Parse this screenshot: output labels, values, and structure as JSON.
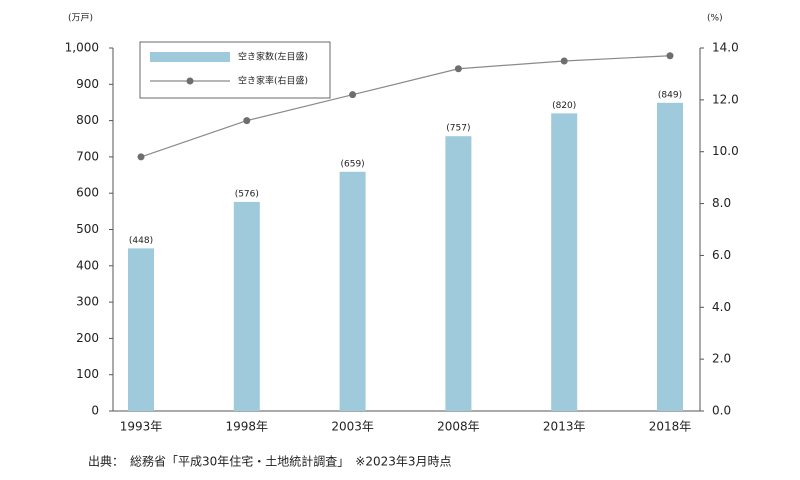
{
  "chart_data": {
    "type": "bar-line",
    "y_unit": "(万戸)",
    "y2_unit": "(%)",
    "categories": [
      "1993年",
      "1998年",
      "2003年",
      "2008年",
      "2013年",
      "2018年"
    ],
    "series": [
      {
        "name": "空き家数(左目盛)",
        "type": "bar",
        "color": "#9ecadb",
        "values": [
          448,
          576,
          659,
          757,
          820,
          849
        ],
        "value_labels": [
          "(448)",
          "(576)",
          "(659)",
          "(757)",
          "(820)",
          "(849)"
        ]
      },
      {
        "name": "空き家率(右目盛)",
        "type": "line",
        "axis": "y2",
        "color": "#8a8a8a",
        "marker_color": "#6e6e6e",
        "values": [
          9.8,
          11.2,
          12.2,
          13.2,
          13.5,
          13.7
        ]
      }
    ],
    "ylim": [
      0,
      1000
    ],
    "yticks": [
      0,
      100,
      200,
      300,
      400,
      500,
      600,
      700,
      800,
      900,
      {
        "value": 1000,
        "label": "1,000"
      }
    ],
    "y2lim": [
      0,
      14
    ],
    "y2ticks": [
      {
        "value": 0,
        "label": "0.0"
      },
      {
        "value": 2,
        "label": "2.0"
      },
      {
        "value": 4,
        "label": "4.0"
      },
      {
        "value": 6,
        "label": "6.0"
      },
      {
        "value": 8,
        "label": "8.0"
      },
      {
        "value": 10,
        "label": "10.0"
      },
      {
        "value": 12,
        "label": "12.0"
      },
      {
        "value": 14,
        "label": "14.0"
      }
    ],
    "grid": false,
    "legend": "top-left",
    "source": "出典：　総務省「平成30年住宅・土地統計調査」　※2023年3月時点"
  }
}
